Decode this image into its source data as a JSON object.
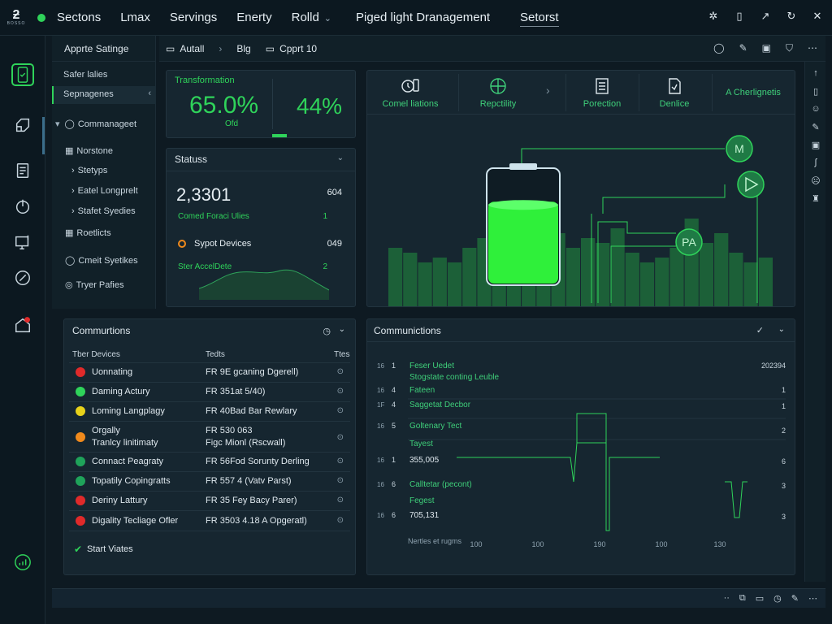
{
  "topbar": {
    "logo_mark": "ƻ",
    "logo_sub": "BOSSO",
    "nav": [
      "Sectons",
      "Lmax",
      "Servings",
      "Enerty",
      "Rolld"
    ],
    "center_title": "Piged light Dranagement",
    "active_item": "Setorst",
    "icons": [
      "gear-icon",
      "device-icon",
      "external-icon",
      "refresh-icon",
      "close-icon"
    ]
  },
  "sidebar": {
    "heading": "Apprte Satinge",
    "items": [
      {
        "label": "Safer lalies"
      },
      {
        "label": "Sepnagenes"
      },
      {
        "label": "Commanageet"
      },
      {
        "label": "Norstone"
      },
      {
        "label": "Stetyps"
      },
      {
        "label": "Eatel Longprelt"
      },
      {
        "label": "Stafet Syedies"
      },
      {
        "label": "Roetlicts"
      },
      {
        "label": "Cmeit Syetikes"
      },
      {
        "label": "Tryer Pafies"
      }
    ]
  },
  "breadcrumb": {
    "items": [
      "Autall",
      "Blg",
      "Cpprt 10"
    ]
  },
  "transformation": {
    "label": "Transformation",
    "value": "65.0%",
    "sub": "Ofd",
    "value2": "44%"
  },
  "status": {
    "title": "Statuss",
    "big_value": "2,3301",
    "big_right": "604",
    "row1_label": "Comed Foraci Ulies",
    "row1_value": "1",
    "row2_label": "Sypot Devices",
    "row2_value": "049",
    "row3_label": "Ster AccelDete",
    "row3_value": "2"
  },
  "device_tabs": [
    {
      "label": "Comel liations",
      "icon": "clock-icon"
    },
    {
      "label": "Repctility",
      "icon": "target-icon"
    },
    {
      "label": "Porection",
      "icon": "document-icon"
    },
    {
      "label": "Denlice",
      "icon": "file-icon"
    },
    {
      "label": "A Cherlignetis",
      "icon": ""
    }
  ],
  "diagram": {
    "nodes": [
      "M",
      "",
      "PA"
    ],
    "battery_level": 0.72,
    "bars": [
      0.6,
      0.55,
      0.45,
      0.5,
      0.45,
      0.6,
      0.7,
      0.55,
      0.5,
      0.65,
      0.85,
      0.75,
      0.6,
      0.7,
      0.65,
      0.8,
      0.55,
      0.45,
      0.5,
      0.6,
      0.9,
      0.65,
      0.75,
      0.55,
      0.45,
      0.5
    ]
  },
  "communications_table": {
    "title": "Commurtions",
    "columns": [
      "Tber Devices",
      "Tedts",
      "Ttes"
    ],
    "rows": [
      {
        "name": "Uonnating",
        "value": "FR 9E  gcaning Dgerell)",
        "color": "#e02a2a"
      },
      {
        "name": "Daming Actury",
        "value": "FR 351at 5/40)",
        "color": "#2fd35a"
      },
      {
        "name": "Loming Langplagy",
        "value": "FR 40Bad Bar Rewlary",
        "color": "#e8d21a"
      },
      {
        "name": "Orgally\nTranlcy linitimaty",
        "value": "FR 530 063\nFigc Mionl (Rscwall)",
        "color": "#f08a1c"
      },
      {
        "name": "Connact Peagraty",
        "value": "FR 56Fod Sorunty Derling",
        "color": "#1fa35a"
      },
      {
        "name": "Topatily Copingratts",
        "value": "FR 557 4 (Vatv Parst)",
        "color": "#1fa35a"
      },
      {
        "name": "Deriny Lattury",
        "value": "FR 35 Fey Bacy Parer)",
        "color": "#e02a2a"
      },
      {
        "name": "Digality Tecliage Ofler",
        "value": "FR 3503 4.18 A Opgeratl)",
        "color": "#e02a2a"
      }
    ],
    "footer": "Start Viates"
  },
  "communications_chart": {
    "title": "Communictions",
    "legend": [
      {
        "idx_a": "16",
        "idx_b": "1",
        "text": "Feser Uedet"
      },
      {
        "idx_a": "",
        "idx_b": "",
        "text": "Stogstate conting Leuble"
      },
      {
        "idx_a": "16",
        "idx_b": "4",
        "text": "Fateen"
      },
      {
        "idx_a": "1F",
        "idx_b": "4",
        "text": "Saggetat Decbor"
      },
      {
        "idx_a": "16",
        "idx_b": "5",
        "text": "Goltenary Tect"
      },
      {
        "idx_a": "",
        "idx_b": "",
        "text": "Tayest"
      },
      {
        "idx_a": "16",
        "idx_b": "1",
        "text": "355,005"
      },
      {
        "idx_a": "16",
        "idx_b": "6",
        "text": "Calltetar (pecont)"
      },
      {
        "idx_a": "",
        "idx_b": "",
        "text": "Fegest"
      },
      {
        "idx_a": "16",
        "idx_b": "6",
        "text": "705,131"
      }
    ],
    "right_values": [
      "202394",
      "1",
      "1",
      "2",
      "6",
      "3",
      "3"
    ],
    "x_axis_label": "Nertles et rugms",
    "x_ticks": [
      "100",
      "100",
      "190",
      "100",
      "130"
    ]
  },
  "colors": {
    "accent": "#2fd35a",
    "panel": "#162630",
    "background": "#0e1a22"
  }
}
